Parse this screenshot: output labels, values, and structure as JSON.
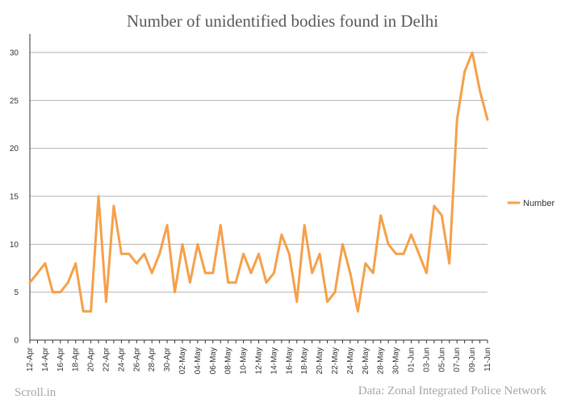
{
  "title": "Number of unidentified bodies found in Delhi",
  "source_label": "Scroll.in",
  "credit_label": "Data: Zonal Integrated Police Network",
  "colors": {
    "series": "#f5a04a",
    "grid": "#b3b3b3",
    "axis": "#333333",
    "footer": "#a6a6a6"
  },
  "chart_data": {
    "type": "line",
    "title": "Number of unidentified bodies found in Delhi",
    "xlabel": "",
    "ylabel": "",
    "ylim": [
      0,
      30
    ],
    "yticks": [
      0,
      5,
      10,
      15,
      20,
      25,
      30
    ],
    "grid": true,
    "legend_position": "right",
    "x": [
      "12-Apr",
      "13-Apr",
      "14-Apr",
      "15-Apr",
      "16-Apr",
      "17-Apr",
      "18-Apr",
      "19-Apr",
      "20-Apr",
      "21-Apr",
      "22-Apr",
      "23-Apr",
      "24-Apr",
      "25-Apr",
      "26-Apr",
      "27-Apr",
      "28-Apr",
      "29-Apr",
      "30-Apr",
      "01-May",
      "02-May",
      "03-May",
      "04-May",
      "05-May",
      "06-May",
      "07-May",
      "08-May",
      "09-May",
      "10-May",
      "11-May",
      "12-May",
      "13-May",
      "14-May",
      "15-May",
      "16-May",
      "17-May",
      "18-May",
      "19-May",
      "20-May",
      "21-May",
      "22-May",
      "23-May",
      "24-May",
      "25-May",
      "26-May",
      "27-May",
      "28-May",
      "29-May",
      "30-May",
      "31-May",
      "01-Jun",
      "02-Jun",
      "03-Jun",
      "04-Jun",
      "05-Jun",
      "06-Jun",
      "07-Jun",
      "08-Jun",
      "09-Jun",
      "10-Jun",
      "11-Jun"
    ],
    "xtick_labels": [
      "12-Apr",
      "14-Apr",
      "16-Apr",
      "18-Apr",
      "20-Apr",
      "22-Apr",
      "24-Apr",
      "26-Apr",
      "28-Apr",
      "30-Apr",
      "02-May",
      "04-May",
      "06-May",
      "08-May",
      "10-May",
      "12-May",
      "14-May",
      "16-May",
      "18-May",
      "20-May",
      "22-May",
      "24-May",
      "26-May",
      "28-May",
      "30-May",
      "01-Jun",
      "03-Jun",
      "05-Jun",
      "07-Jun",
      "09-Jun",
      "11-Jun"
    ],
    "series": [
      {
        "name": "Number",
        "values": [
          6,
          7,
          8,
          5,
          5,
          6,
          8,
          3,
          3,
          15,
          4,
          14,
          9,
          9,
          8,
          9,
          7,
          9,
          12,
          5,
          10,
          6,
          10,
          7,
          7,
          12,
          6,
          6,
          9,
          7,
          9,
          6,
          7,
          11,
          9,
          4,
          12,
          7,
          9,
          4,
          5,
          10,
          7,
          3,
          8,
          7,
          13,
          10,
          9,
          9,
          11,
          9,
          7,
          14,
          13,
          8,
          23,
          28,
          30,
          26,
          23
        ]
      }
    ]
  }
}
